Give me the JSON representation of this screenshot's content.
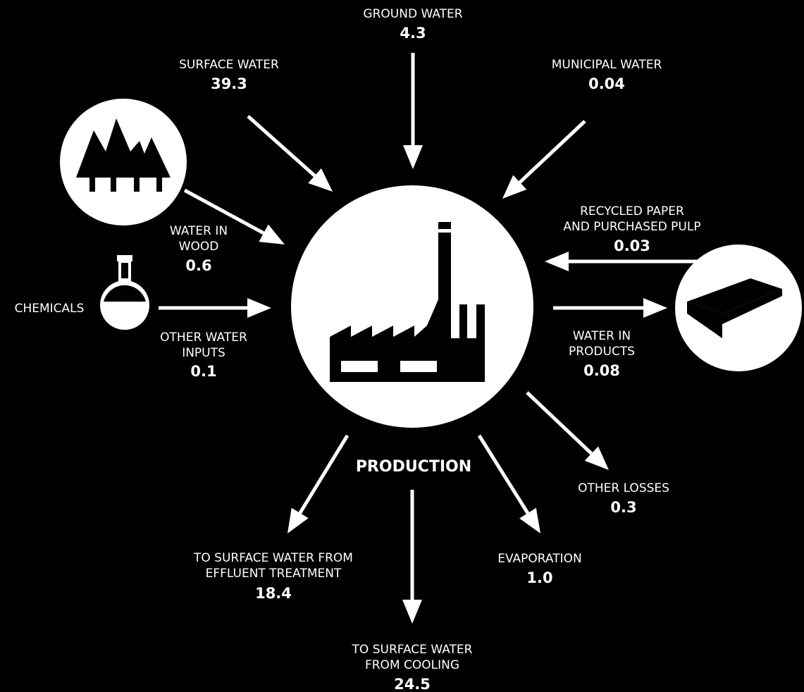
{
  "title": "PRODUCTION",
  "flows": [
    {
      "label": [
        "GROUND WATER"
      ],
      "value": "4.3"
    },
    {
      "label": [
        "SURFACE WATER"
      ],
      "value": "39.3"
    },
    {
      "label": [
        "MUNICIPAL WATER"
      ],
      "value": "0.04"
    },
    {
      "label": [
        "WATER IN",
        "WOOD"
      ],
      "value": "0.6"
    },
    {
      "label": [
        "CHEMICALS"
      ]
    },
    {
      "label": [
        "OTHER WATER",
        "INPUTS"
      ],
      "value": "0.1"
    },
    {
      "label": [
        "RECYCLED PAPER",
        "AND PURCHASED PULP"
      ],
      "value": "0.03"
    },
    {
      "label": [
        "WATER IN",
        "PRODUCTS"
      ],
      "value": "0.08"
    },
    {
      "label": [
        "OTHER LOSSES"
      ],
      "value": "0.3"
    },
    {
      "label": [
        "EVAPORATION"
      ],
      "value": "1.0"
    },
    {
      "label": [
        "TO SURFACE WATER FROM",
        "EFFLUENT TREATMENT"
      ],
      "value": "18.4"
    },
    {
      "label": [
        "TO SURFACE WATER",
        "FROM COOLING"
      ],
      "value": "24.5"
    }
  ]
}
